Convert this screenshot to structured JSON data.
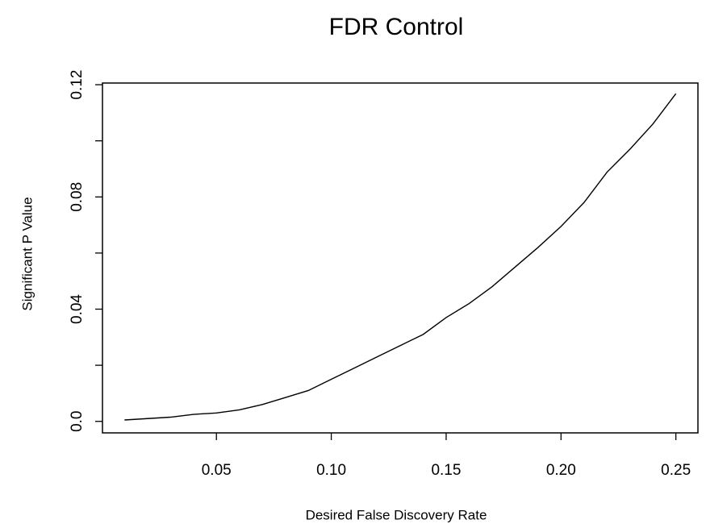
{
  "chart_data": {
    "type": "line",
    "title": "FDR Control",
    "xlabel": "Desired False Discovery Rate",
    "ylabel": "Significant P Value",
    "x": [
      0.01,
      0.02,
      0.03,
      0.04,
      0.05,
      0.06,
      0.07,
      0.08,
      0.09,
      0.1,
      0.11,
      0.12,
      0.13,
      0.14,
      0.15,
      0.16,
      0.17,
      0.18,
      0.19,
      0.2,
      0.21,
      0.22,
      0.23,
      0.24,
      0.25
    ],
    "values": [
      0.0005,
      0.001,
      0.0015,
      0.0025,
      0.003,
      0.0041,
      0.006,
      0.0085,
      0.011,
      0.015,
      0.019,
      0.023,
      0.027,
      0.031,
      0.037,
      0.042,
      0.048,
      0.055,
      0.062,
      0.0695,
      0.078,
      0.0888,
      0.097,
      0.106,
      0.1168
    ],
    "color": "#000000",
    "xlim": [
      0.0004,
      0.2596
    ],
    "ylim": [
      -0.0041,
      0.1206
    ],
    "xticks": [
      0.05,
      {
        "value": 0.1,
        "label": "0.10"
      },
      0.15,
      {
        "value": 0.2,
        "label": "0.20"
      },
      0.25
    ],
    "yticks": [
      {
        "value": 0,
        "label": "0.0"
      },
      0.04,
      0.08,
      0.12
    ],
    "yticks_unlabeled": [
      0.02,
      0.06,
      0.1
    ]
  }
}
